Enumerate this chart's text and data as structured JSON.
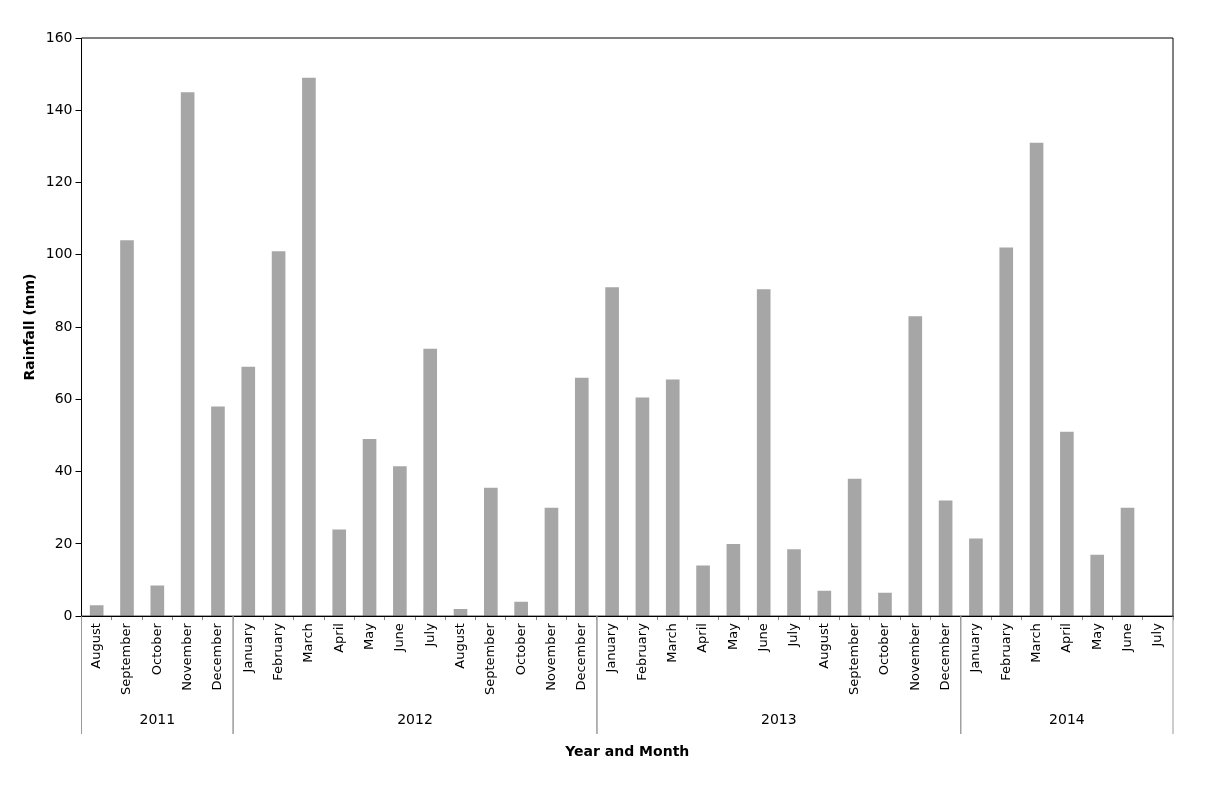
{
  "chart_data": {
    "type": "bar",
    "xlabel": "Year and Month",
    "ylabel": "Rainfall (mm)",
    "categories": [
      "August",
      "September",
      "October",
      "November",
      "December",
      "January",
      "February",
      "March",
      "April",
      "May",
      "June",
      "July",
      "August",
      "September",
      "October",
      "November",
      "December",
      "January",
      "February",
      "March",
      "April",
      "May",
      "June",
      "July",
      "August",
      "September",
      "October",
      "November",
      "December",
      "January",
      "February",
      "March",
      "April",
      "May",
      "June",
      "July"
    ],
    "series": [
      {
        "color": "#a6a6a6",
        "values": [
          3,
          104,
          8.5,
          145,
          58,
          69,
          101,
          149,
          24,
          49,
          41.5,
          74,
          2,
          35.5,
          4,
          30,
          66,
          91,
          60.5,
          65.5,
          14,
          20,
          90.5,
          18.5,
          7,
          38,
          6.5,
          83,
          32,
          21.5,
          102,
          131,
          51,
          17,
          30,
          0
        ]
      }
    ],
    "annotations": [
      "2011",
      "2012",
      "2013",
      "2014"
    ],
    "ylim": [
      0,
      160
    ],
    "yticks": [
      0,
      20,
      40,
      60,
      80,
      100,
      120,
      140,
      160
    ],
    "grid": false,
    "legend": false
  }
}
